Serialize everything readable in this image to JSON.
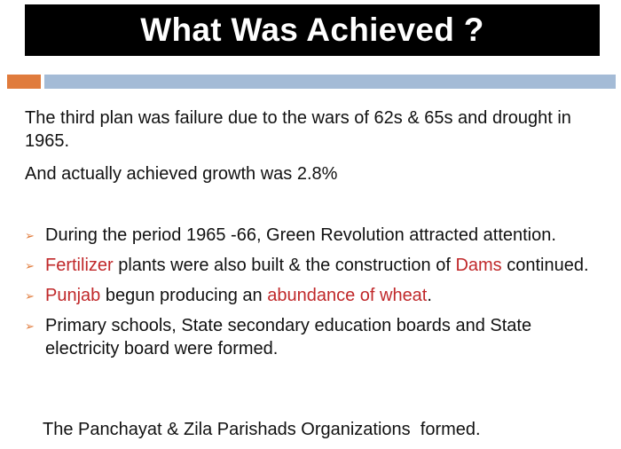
{
  "slide": {
    "title": "What Was Achieved ?",
    "accent_colors": {
      "orange": "#e07b3c",
      "blue": "#a4bbd6",
      "highlight_red": "#c0282a"
    },
    "paragraphs": [
      "The third plan was failure due to the wars of 62s & 65s and drought in 1965.",
      "And actually achieved growth was 2.8%"
    ],
    "bullet_marker": "➢",
    "bullets": [
      {
        "text": "During the period 1965 -66, Green Revolution attracted attention."
      },
      {
        "seg1_red": "Fertilizer",
        "seg2": " plants were also built & the construction of ",
        "seg3_red": "Dams",
        "seg4": " continued."
      },
      {
        "seg1_red": "Punjab",
        "seg2": " begun producing an ",
        "seg3_red": "abundance of wheat",
        "seg4": "."
      },
      {
        "text": "Primary schools, State secondary education boards and State electricity board were formed."
      }
    ],
    "footer": "The Panchayat & Zila Parishads Organizations  formed."
  }
}
